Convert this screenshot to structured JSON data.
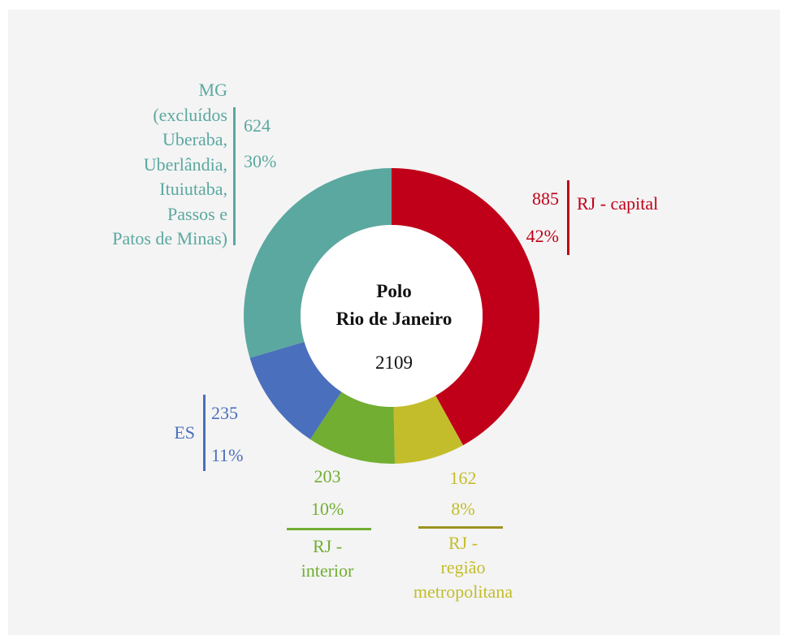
{
  "chart_data": {
    "type": "pie",
    "center_title_line1": "Polo",
    "center_title_line2": "Rio de Janeiro",
    "center_total": "2109",
    "total": 2109,
    "slices": [
      {
        "label": "RJ - capital",
        "value": 885,
        "value_text": "885",
        "percent": 42,
        "percent_text": "42%",
        "color": "#C00018"
      },
      {
        "label_line1": "RJ -",
        "label_line2": "região",
        "label_line3": "metropolitana",
        "value": 162,
        "value_text": "162",
        "percent": 8,
        "percent_text": "8%",
        "color": "#C3BD2B",
        "line_color": "#9A9420"
      },
      {
        "label_line1": "RJ -",
        "label_line2": "interior",
        "value": 203,
        "value_text": "203",
        "percent": 10,
        "percent_text": "10%",
        "color": "#71AE32"
      },
      {
        "label": "ES",
        "value": 235,
        "value_text": "235",
        "percent": 11,
        "percent_text": "11%",
        "color": "#4A6FBC"
      },
      {
        "label_lines": [
          "MG",
          "(excluídos",
          "Uberaba,",
          "Uberlândia,",
          "Ituiutaba,",
          "Passos e",
          "Patos de Minas)"
        ],
        "value": 624,
        "value_text": "624",
        "percent": 30,
        "percent_text": "30%",
        "color": "#5BA8A0"
      }
    ]
  }
}
